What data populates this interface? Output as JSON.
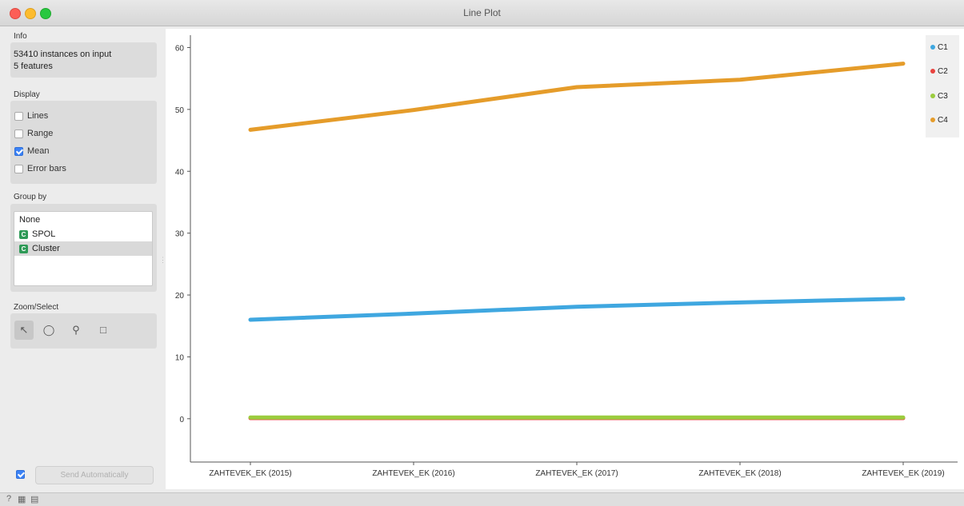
{
  "window": {
    "title": "Line Plot"
  },
  "info": {
    "label": "Info",
    "instances": "53410 instances on input",
    "features": "5 features"
  },
  "display": {
    "label": "Display",
    "options": [
      {
        "label": "Lines",
        "checked": false
      },
      {
        "label": "Range",
        "checked": false
      },
      {
        "label": "Mean",
        "checked": true
      },
      {
        "label": "Error bars",
        "checked": false
      }
    ]
  },
  "group_by": {
    "label": "Group by",
    "items": [
      {
        "label": "None",
        "icon": ""
      },
      {
        "label": "SPOL",
        "icon": "discrete-variable-icon"
      },
      {
        "label": "Cluster",
        "icon": "discrete-variable-icon",
        "selected": true
      }
    ]
  },
  "zoom_select": {
    "label": "Zoom/Select",
    "tools": [
      "pointer-icon",
      "lasso-icon",
      "zoom-icon",
      "fit-icon"
    ]
  },
  "send": {
    "label": "Send Automatically",
    "checked": true
  },
  "chart_data": {
    "type": "line",
    "categories": [
      "ZAHTEVEK_EK (2015)",
      "ZAHTEVEK_EK (2016)",
      "ZAHTEVEK_EK (2017)",
      "ZAHTEVEK_EK (2018)",
      "ZAHTEVEK_EK (2019)"
    ],
    "ylim": [
      -7,
      62
    ],
    "yticks": [
      0,
      10,
      20,
      30,
      40,
      50,
      60
    ],
    "series": [
      {
        "name": "C1",
        "color": "#3fa7e0",
        "values": [
          16.0,
          17.0,
          18.1,
          18.8,
          19.4
        ]
      },
      {
        "name": "C2",
        "color": "#e8433e",
        "values": [
          0.1,
          0.1,
          0.1,
          0.1,
          0.1
        ]
      },
      {
        "name": "C3",
        "color": "#9bcc3e",
        "values": [
          0.2,
          0.2,
          0.2,
          0.2,
          0.2
        ]
      },
      {
        "name": "C4",
        "color": "#e59c2a",
        "values": [
          46.7,
          49.9,
          53.6,
          54.8,
          57.4
        ]
      }
    ],
    "legend": "top-right"
  }
}
